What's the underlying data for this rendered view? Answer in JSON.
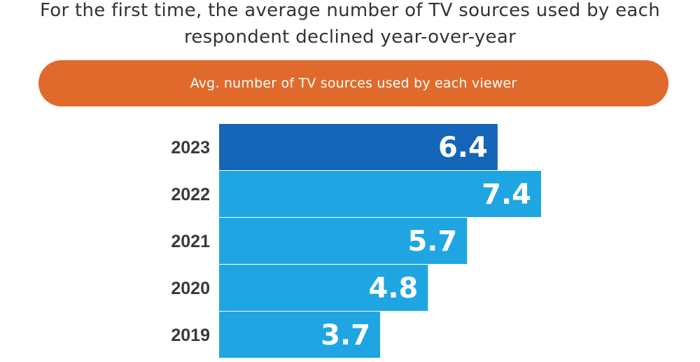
{
  "headline": {
    "line1": "For the first time, the average number of TV sources used by each",
    "line2": "respondent declined year-over-year"
  },
  "colors": {
    "pill": "#E06A2B",
    "bar_highlight": "#1565B8",
    "bar_default": "#1FA6E2"
  },
  "chart_data": {
    "type": "bar",
    "orientation": "horizontal",
    "title": "Avg. number of TV sources used by each viewer",
    "categories": [
      "2023",
      "2022",
      "2021",
      "2020",
      "2019"
    ],
    "values": [
      6.4,
      7.4,
      5.7,
      4.8,
      3.7
    ],
    "value_labels": [
      "6.4",
      "7.4",
      "5.7",
      "4.8",
      "3.7"
    ],
    "highlight_category": "2023",
    "xlim": [
      0,
      7.4
    ],
    "xlabel": "",
    "ylabel": ""
  }
}
